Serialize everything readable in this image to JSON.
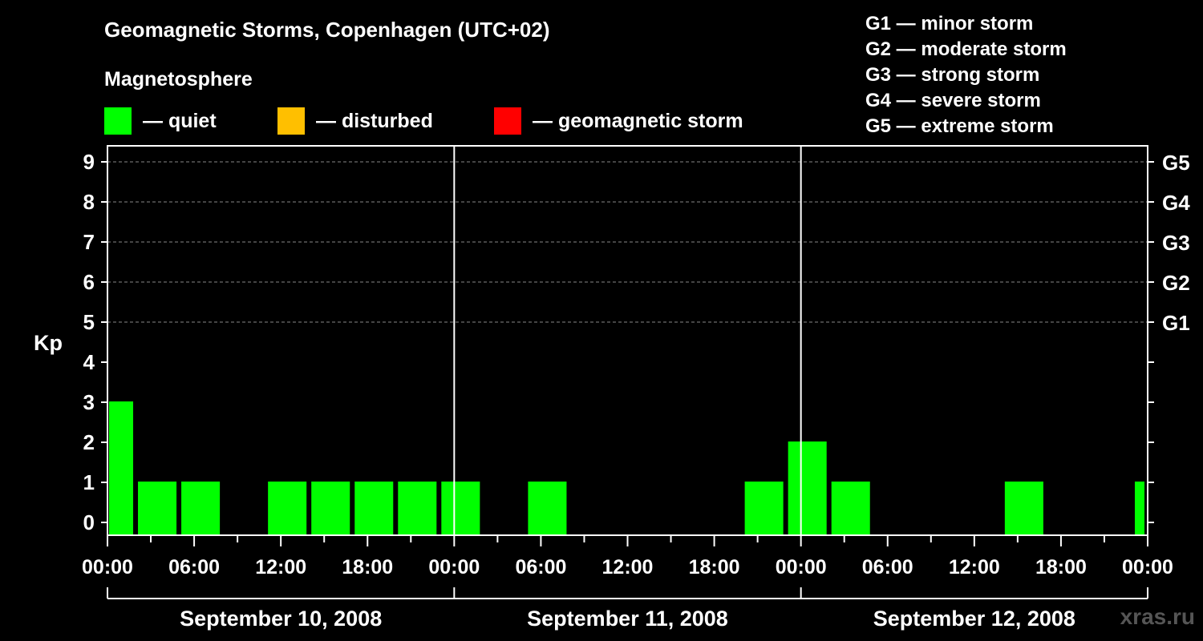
{
  "header": {
    "title": "Geomagnetic Storms, Copenhagen (UTC+02)",
    "subtitle": "Magnetosphere"
  },
  "legend": [
    {
      "label": "— quiet",
      "color": "#00ff00"
    },
    {
      "label": "— disturbed",
      "color": "#ffbf00"
    },
    {
      "label": "— geomagnetic storm",
      "color": "#ff0000"
    }
  ],
  "storm_scale": [
    "G1 — minor storm",
    "G2 — moderate storm",
    "G3 — strong storm",
    "G4 — severe storm",
    "G5 — extreme storm"
  ],
  "watermark": "xras.ru",
  "chart_data": {
    "type": "bar",
    "title": "Geomagnetic Storms, Copenhagen (UTC+02)",
    "ylabel": "Kp",
    "ylim": [
      0,
      9
    ],
    "yticks": [
      "0",
      "1",
      "2",
      "3",
      "4",
      "5",
      "6",
      "7",
      "8",
      "9"
    ],
    "right_ticks": [
      {
        "kp": 5,
        "label": "G1"
      },
      {
        "kp": 6,
        "label": "G2"
      },
      {
        "kp": 7,
        "label": "G3"
      },
      {
        "kp": 8,
        "label": "G4"
      },
      {
        "kp": 9,
        "label": "G5"
      }
    ],
    "xlim_hours": [
      0,
      72
    ],
    "xtick_labels": [
      "00:00",
      "06:00",
      "12:00",
      "18:00",
      "00:00",
      "06:00",
      "12:00",
      "18:00",
      "00:00",
      "06:00",
      "12:00",
      "18:00",
      "00:00"
    ],
    "days": [
      "September 10, 2008",
      "September 11, 2008",
      "September 12, 2008"
    ],
    "grid": "dashed horizontal at Kp 5-9",
    "series": [
      {
        "name": "Kp",
        "bars": [
          {
            "start_hour": 0,
            "duration": 2,
            "value": 3,
            "status": "quiet"
          },
          {
            "start_hour": 2,
            "duration": 3,
            "value": 1,
            "status": "quiet"
          },
          {
            "start_hour": 5,
            "duration": 3,
            "value": 1,
            "status": "quiet"
          },
          {
            "start_hour": 11,
            "duration": 3,
            "value": 1,
            "status": "quiet"
          },
          {
            "start_hour": 14,
            "duration": 3,
            "value": 1,
            "status": "quiet"
          },
          {
            "start_hour": 17,
            "duration": 3,
            "value": 1,
            "status": "quiet"
          },
          {
            "start_hour": 20,
            "duration": 3,
            "value": 1,
            "status": "quiet"
          },
          {
            "start_hour": 23,
            "duration": 3,
            "value": 1,
            "status": "quiet"
          },
          {
            "start_hour": 29,
            "duration": 3,
            "value": 1,
            "status": "quiet"
          },
          {
            "start_hour": 44,
            "duration": 3,
            "value": 1,
            "status": "quiet"
          },
          {
            "start_hour": 47,
            "duration": 3,
            "value": 2,
            "status": "quiet"
          },
          {
            "start_hour": 50,
            "duration": 3,
            "value": 1,
            "status": "quiet"
          },
          {
            "start_hour": 62,
            "duration": 3,
            "value": 1,
            "status": "quiet"
          },
          {
            "start_hour": 71,
            "duration": 1,
            "value": 1,
            "status": "quiet"
          }
        ]
      }
    ]
  }
}
